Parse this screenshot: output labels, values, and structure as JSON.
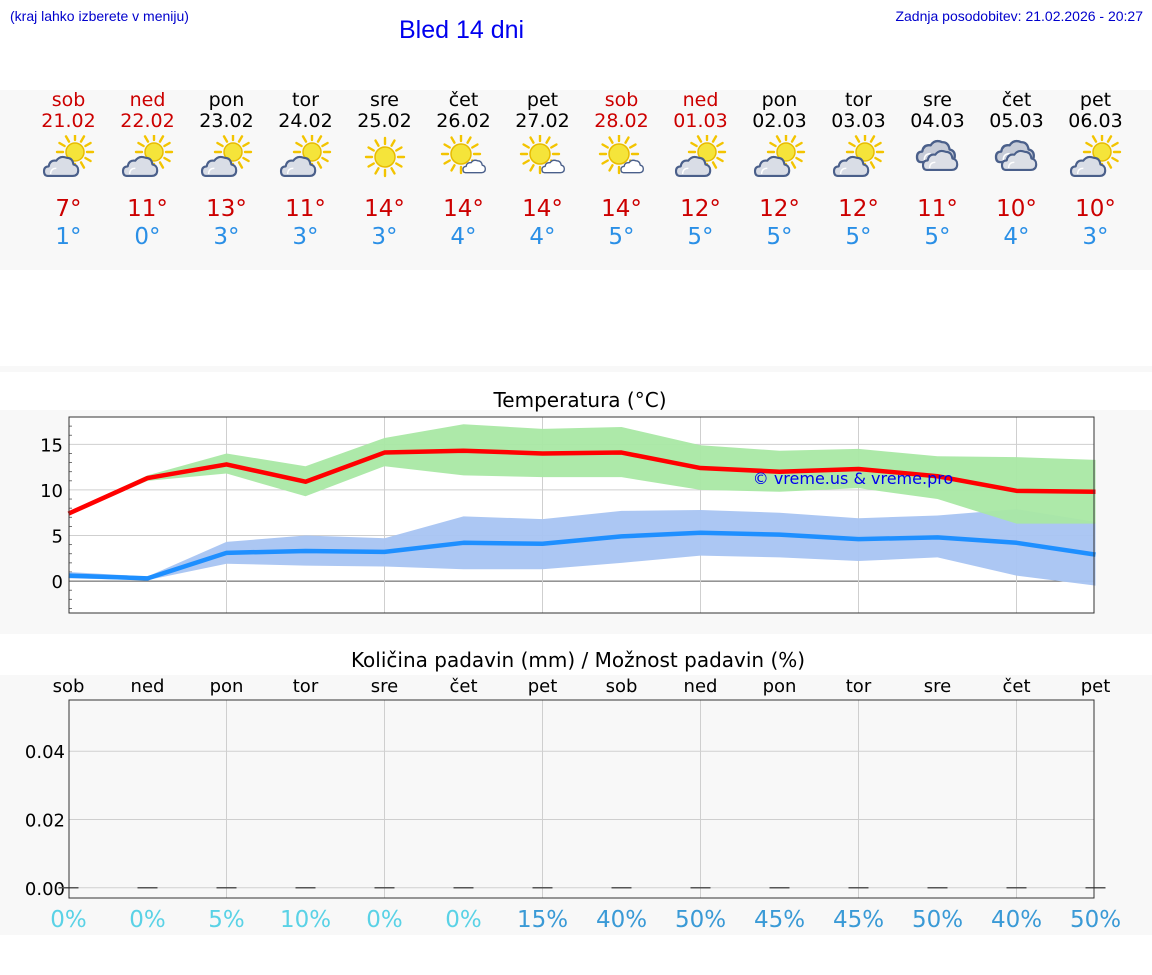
{
  "header": {
    "hint": "(kraj lahko izberete v meniju)",
    "title": "Bled 14 dni",
    "updated": "Zadnja posodobitev: 21.02.2026 - 20:27"
  },
  "colors": {
    "tmax_line": "#ff0000",
    "tmax_band": "#a9e8a4",
    "tmin_line": "#1e8fff",
    "tmin_band": "#a8c4f2",
    "weekend_text": "#cc0000",
    "min_text": "#2a8fe6"
  },
  "days": [
    {
      "name": "sob",
      "date": "21.02",
      "weekend": true,
      "icon": "sun-cloud-icon",
      "tmax": "7°",
      "tmin": "1°"
    },
    {
      "name": "ned",
      "date": "22.02",
      "weekend": true,
      "icon": "sun-cloud-icon",
      "tmax": "11°",
      "tmin": "0°"
    },
    {
      "name": "pon",
      "date": "23.02",
      "weekend": false,
      "icon": "sun-cloud-icon",
      "tmax": "13°",
      "tmin": "3°"
    },
    {
      "name": "tor",
      "date": "24.02",
      "weekend": false,
      "icon": "sun-cloud-icon",
      "tmax": "11°",
      "tmin": "3°"
    },
    {
      "name": "sre",
      "date": "25.02",
      "weekend": false,
      "icon": "sun-icon",
      "tmax": "14°",
      "tmin": "3°"
    },
    {
      "name": "čet",
      "date": "26.02",
      "weekend": false,
      "icon": "sun-small-cloud-icon",
      "tmax": "14°",
      "tmin": "4°"
    },
    {
      "name": "pet",
      "date": "27.02",
      "weekend": false,
      "icon": "sun-small-cloud-icon",
      "tmax": "14°",
      "tmin": "4°"
    },
    {
      "name": "sob",
      "date": "28.02",
      "weekend": true,
      "icon": "sun-small-cloud-icon",
      "tmax": "14°",
      "tmin": "5°"
    },
    {
      "name": "ned",
      "date": "01.03",
      "weekend": true,
      "icon": "sun-cloud-icon",
      "tmax": "12°",
      "tmin": "5°"
    },
    {
      "name": "pon",
      "date": "02.03",
      "weekend": false,
      "icon": "sun-cloud-icon",
      "tmax": "12°",
      "tmin": "5°"
    },
    {
      "name": "tor",
      "date": "03.03",
      "weekend": false,
      "icon": "sun-cloud-icon",
      "tmax": "12°",
      "tmin": "5°"
    },
    {
      "name": "sre",
      "date": "04.03",
      "weekend": false,
      "icon": "cloud-icon",
      "tmax": "11°",
      "tmin": "5°"
    },
    {
      "name": "čet",
      "date": "05.03",
      "weekend": false,
      "icon": "cloud-icon",
      "tmax": "10°",
      "tmin": "4°"
    },
    {
      "name": "pet",
      "date": "06.03",
      "weekend": false,
      "icon": "sun-cloud-icon",
      "tmax": "10°",
      "tmin": "3°"
    }
  ],
  "chart_data": [
    {
      "type": "line",
      "title": "Temperatura (°C)",
      "watermark": "© vreme.us & vreme.pro",
      "x": [
        0,
        1,
        2,
        3,
        4,
        5,
        6,
        7,
        8,
        9,
        10,
        11,
        12,
        13
      ],
      "ylim": [
        -3.5,
        18
      ],
      "yticks": [
        "0",
        "5",
        "10",
        "15"
      ],
      "series": [
        {
          "name": "max",
          "values": [
            7.4,
            11.3,
            12.8,
            10.9,
            14.1,
            14.3,
            14.0,
            14.1,
            12.4,
            12.0,
            12.3,
            11.5,
            9.9,
            9.8
          ],
          "band_low": [
            7.2,
            11.0,
            11.8,
            9.3,
            12.6,
            11.6,
            11.4,
            11.4,
            10.0,
            9.8,
            10.2,
            9.0,
            6.3,
            6.3
          ],
          "band_high": [
            7.6,
            11.6,
            14.0,
            12.6,
            15.7,
            17.2,
            16.7,
            16.9,
            14.9,
            14.3,
            14.5,
            13.7,
            13.6,
            13.3
          ]
        },
        {
          "name": "min",
          "values": [
            0.6,
            0.3,
            3.1,
            3.3,
            3.2,
            4.2,
            4.1,
            4.9,
            5.3,
            5.1,
            4.6,
            4.8,
            4.2,
            2.9
          ],
          "band_low": [
            0.3,
            0.1,
            1.9,
            1.7,
            1.6,
            1.3,
            1.3,
            2.0,
            2.8,
            2.6,
            2.2,
            2.6,
            0.6,
            -0.5
          ],
          "band_high": [
            1.0,
            0.5,
            4.3,
            5.0,
            4.7,
            7.1,
            6.8,
            7.7,
            7.8,
            7.5,
            6.9,
            7.2,
            7.9,
            6.5
          ]
        }
      ]
    },
    {
      "type": "bar",
      "title": "Količina padavin (mm) / Možnost padavin (%)",
      "categories": [
        "sob",
        "ned",
        "pon",
        "tor",
        "sre",
        "čet",
        "pet",
        "sob",
        "ned",
        "pon",
        "tor",
        "sre",
        "čet",
        "pet"
      ],
      "values": [
        0,
        0,
        0,
        0,
        0,
        0,
        0,
        0,
        0,
        0,
        0,
        0,
        0,
        0
      ],
      "ylim": [
        -0.003,
        0.055
      ],
      "yticks": [
        "0.00",
        "0.02",
        "0.04"
      ],
      "probabilities": [
        "0%",
        "0%",
        "5%",
        "10%",
        "0%",
        "0%",
        "15%",
        "40%",
        "50%",
        "45%",
        "45%",
        "50%",
        "40%",
        "50%"
      ],
      "probability_values": [
        0,
        0,
        5,
        10,
        0,
        0,
        15,
        40,
        50,
        45,
        45,
        50,
        40,
        50
      ]
    }
  ]
}
